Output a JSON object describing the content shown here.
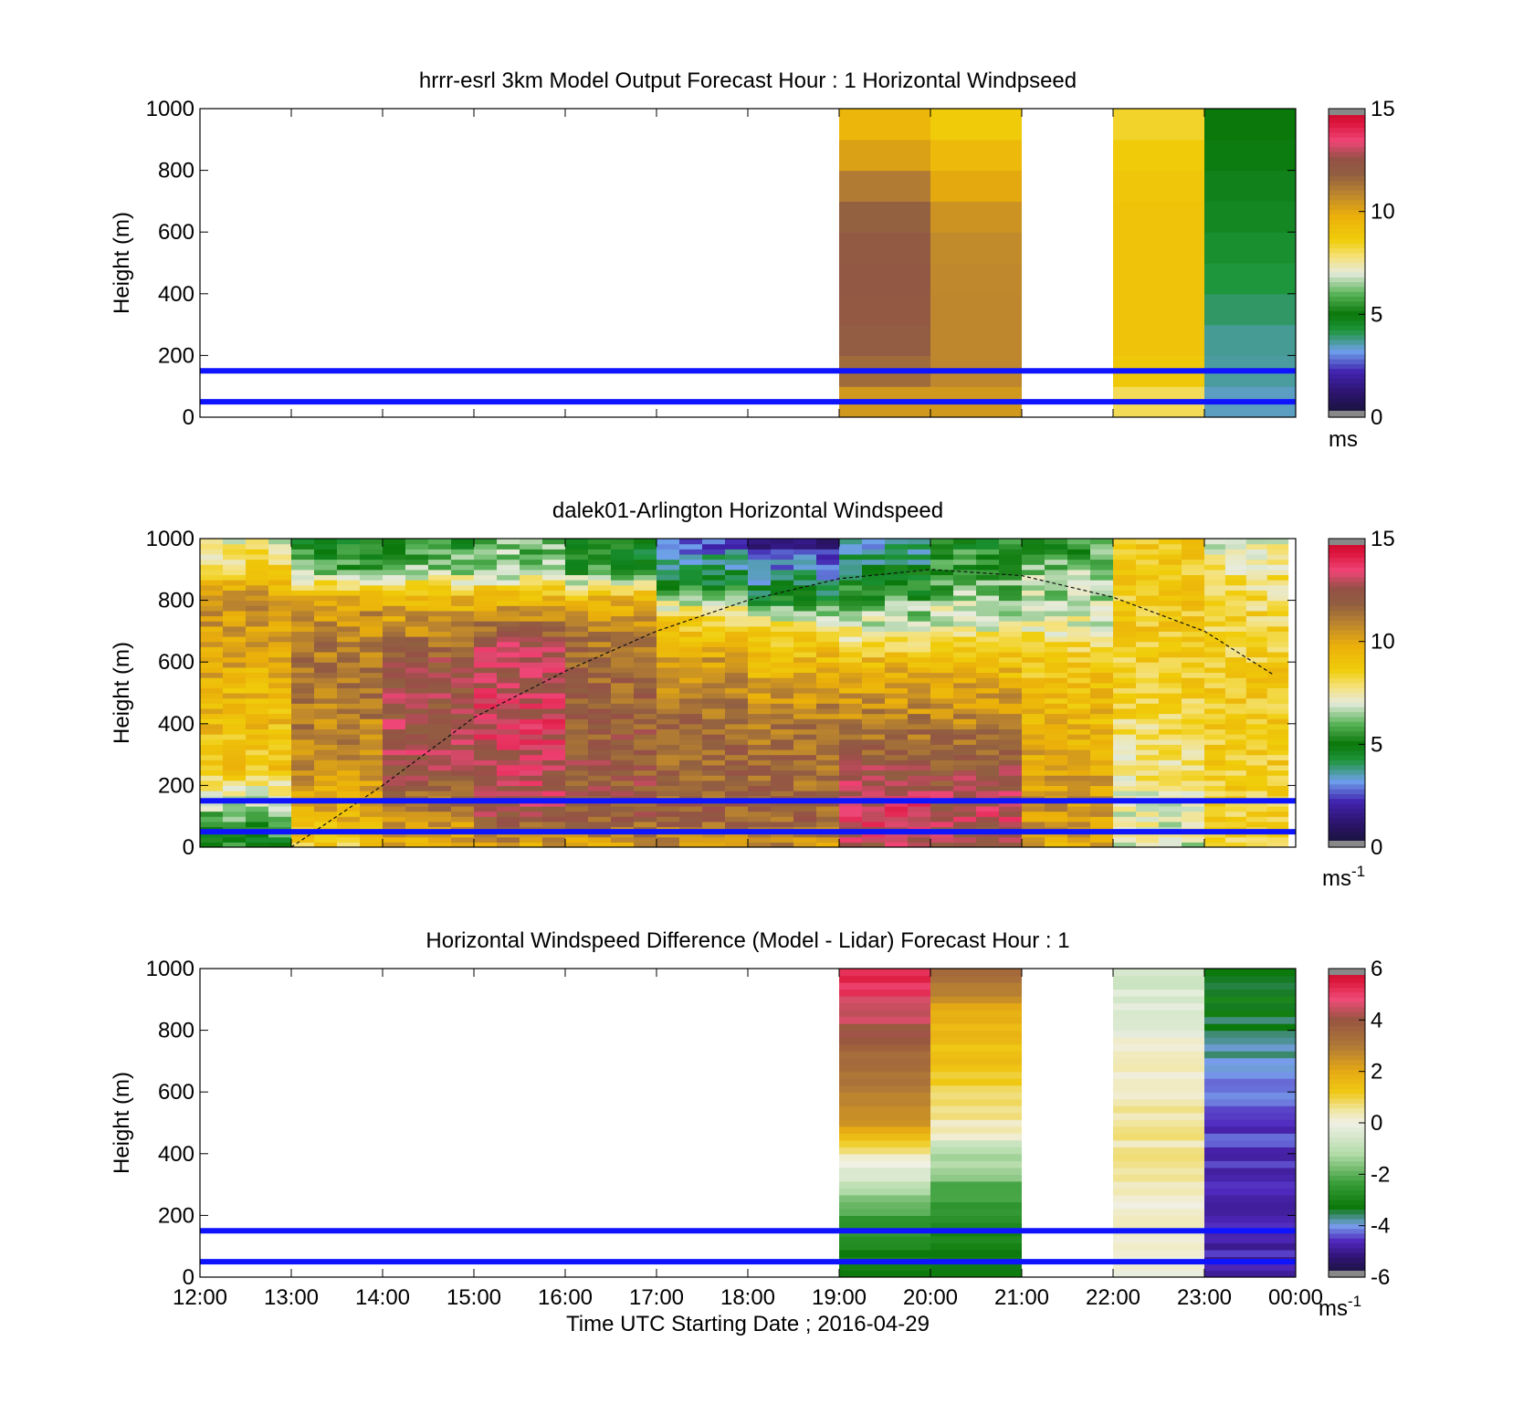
{
  "chart_data": [
    {
      "type": "heatmap",
      "title": "hrrr-esrl 3km Model Output   Forecast Hour : 1 Horizontal Windpseed",
      "ylabel": "Height (m)",
      "xlim": [
        "12:00",
        "00:00"
      ],
      "ylim": [
        0,
        1000
      ],
      "yticks": [
        "0",
        "200",
        "400",
        "600",
        "800",
        "1000"
      ],
      "x_ticks": [
        "12:00",
        "13:00",
        "14:00",
        "15:00",
        "16:00",
        "17:00",
        "18:00",
        "19:00",
        "20:00",
        "21:00",
        "22:00",
        "23:00",
        "00:00"
      ],
      "colorbar": {
        "min": 0,
        "max": 15,
        "ticks": [
          "0",
          "5",
          "10",
          "15"
        ],
        "unit": "ms"
      },
      "reference_heights_m": [
        50,
        150
      ],
      "columns": [
        {
          "start": "19:00",
          "end": "20:00",
          "profile": [
            [
              0,
              9.5
            ],
            [
              20,
              9.6
            ],
            [
              40,
              10.2
            ],
            [
              100,
              11.3
            ],
            [
              300,
              12.1
            ],
            [
              500,
              12.2
            ],
            [
              700,
              11.6
            ],
            [
              800,
              10.6
            ],
            [
              900,
              9.7
            ],
            [
              1000,
              9.3
            ]
          ]
        },
        {
          "start": "20:00",
          "end": "21:00",
          "profile": [
            [
              0,
              9.0
            ],
            [
              20,
              9.5
            ],
            [
              40,
              10.3
            ],
            [
              100,
              10.8
            ],
            [
              400,
              10.8
            ],
            [
              600,
              10.7
            ],
            [
              700,
              10.3
            ],
            [
              800,
              9.6
            ],
            [
              900,
              9.2
            ],
            [
              1000,
              8.2
            ]
          ]
        },
        {
          "start": "22:00",
          "end": "23:00",
          "profile": [
            [
              0,
              6.0
            ],
            [
              15,
              6.9
            ],
            [
              35,
              7.5
            ],
            [
              60,
              8.4
            ],
            [
              200,
              9.0
            ],
            [
              700,
              9.0
            ],
            [
              850,
              8.7
            ],
            [
              1000,
              8.2
            ]
          ]
        },
        {
          "start": "23:00",
          "end": "00:00",
          "profile": [
            [
              0,
              3.2
            ],
            [
              40,
              3.4
            ],
            [
              100,
              3.6
            ],
            [
              250,
              3.7
            ],
            [
              400,
              4.1
            ],
            [
              500,
              4.3
            ],
            [
              650,
              4.6
            ],
            [
              800,
              4.8
            ],
            [
              900,
              5.0
            ],
            [
              1000,
              5.0
            ]
          ]
        }
      ]
    },
    {
      "type": "heatmap",
      "title": "dalek01-Arlington  Horizontal Windspeed",
      "ylabel": "Height (m)",
      "xlim": [
        "12:00",
        "00:00"
      ],
      "ylim": [
        0,
        1000
      ],
      "yticks": [
        "0",
        "200",
        "400",
        "600",
        "800",
        "1000"
      ],
      "colorbar": {
        "min": 0,
        "max": 15,
        "ticks": [
          "0",
          "5",
          "10",
          "15"
        ],
        "unit": "ms",
        "unit_exponent": "-1"
      },
      "reference_heights_m": [
        50,
        150
      ],
      "boundary_layer_curve": [
        [
          "13:00",
          0
        ],
        [
          "14:00",
          200
        ],
        [
          "15:00",
          420
        ],
        [
          "16:00",
          570
        ],
        [
          "17:00",
          700
        ],
        [
          "18:00",
          800
        ],
        [
          "19:00",
          870
        ],
        [
          "20:00",
          900
        ],
        [
          "21:00",
          880
        ],
        [
          "22:00",
          810
        ],
        [
          "23:00",
          700
        ],
        [
          "23:45",
          560
        ]
      ],
      "bins": [
        {
          "start": "12:00",
          "end": "13:00",
          "profile": [
            [
              0,
              5.0
            ],
            [
              60,
              5.5
            ],
            [
              150,
              6.8
            ],
            [
              250,
              8.8
            ],
            [
              500,
              9.5
            ],
            [
              800,
              10.6
            ],
            [
              900,
              8.5
            ],
            [
              1000,
              7.2
            ]
          ]
        },
        {
          "start": "13:00",
          "end": "14:00",
          "profile": [
            [
              0,
              8.5
            ],
            [
              100,
              9.6
            ],
            [
              300,
              10.8
            ],
            [
              600,
              11.3
            ],
            [
              800,
              10.3
            ],
            [
              900,
              6.0
            ],
            [
              1000,
              5.0
            ]
          ]
        },
        {
          "start": "14:00",
          "end": "15:00",
          "profile": [
            [
              0,
              9.6
            ],
            [
              100,
              11.0
            ],
            [
              300,
              12.8
            ],
            [
              600,
              12.2
            ],
            [
              800,
              9.6
            ],
            [
              900,
              6.5
            ],
            [
              1000,
              5.0
            ]
          ]
        },
        {
          "start": "15:00",
          "end": "16:00",
          "profile": [
            [
              0,
              10.0
            ],
            [
              100,
              12.6
            ],
            [
              400,
              13.2
            ],
            [
              650,
              12.8
            ],
            [
              800,
              9.6
            ],
            [
              900,
              6.5
            ],
            [
              1000,
              6.0
            ]
          ]
        },
        {
          "start": "16:00",
          "end": "17:00",
          "profile": [
            [
              0,
              10.0
            ],
            [
              100,
              12.2
            ],
            [
              400,
              12.0
            ],
            [
              700,
              11.2
            ],
            [
              800,
              9.6
            ],
            [
              900,
              5.5
            ],
            [
              1000,
              4.5
            ]
          ]
        },
        {
          "start": "17:00",
          "end": "18:00",
          "profile": [
            [
              0,
              10.5
            ],
            [
              100,
              11.8
            ],
            [
              400,
              11.5
            ],
            [
              600,
              10.3
            ],
            [
              750,
              8.2
            ],
            [
              850,
              5.0
            ],
            [
              1000,
              2.5
            ]
          ]
        },
        {
          "start": "18:00",
          "end": "19:00",
          "profile": [
            [
              0,
              10.5
            ],
            [
              100,
              11.8
            ],
            [
              400,
              11.2
            ],
            [
              600,
              9.4
            ],
            [
              700,
              8.6
            ],
            [
              800,
              5.0
            ],
            [
              1000,
              1.5
            ]
          ]
        },
        {
          "start": "19:00",
          "end": "20:00",
          "profile": [
            [
              0,
              12.5
            ],
            [
              100,
              13.4
            ],
            [
              200,
              13.0
            ],
            [
              350,
              11.5
            ],
            [
              600,
              9.4
            ],
            [
              700,
              7.5
            ],
            [
              850,
              5.0
            ],
            [
              1000,
              3.5
            ]
          ]
        },
        {
          "start": "20:00",
          "end": "21:00",
          "profile": [
            [
              0,
              12.0
            ],
            [
              100,
              13.0
            ],
            [
              250,
              12.2
            ],
            [
              450,
              10.6
            ],
            [
              600,
              9.2
            ],
            [
              700,
              7.4
            ],
            [
              850,
              6.0
            ],
            [
              1000,
              5.0
            ]
          ]
        },
        {
          "start": "21:00",
          "end": "22:00",
          "profile": [
            [
              0,
              10.0
            ],
            [
              150,
              10.5
            ],
            [
              400,
              9.5
            ],
            [
              600,
              8.8
            ],
            [
              750,
              7.0
            ],
            [
              900,
              6.2
            ],
            [
              1000,
              5.5
            ]
          ]
        },
        {
          "start": "22:00",
          "end": "23:00",
          "profile": [
            [
              0,
              7.0
            ],
            [
              200,
              7.5
            ],
            [
              500,
              8.5
            ],
            [
              800,
              8.8
            ],
            [
              1000,
              8.5
            ]
          ]
        },
        {
          "start": "23:00",
          "end": "23:55",
          "profile": [
            [
              0,
              8.0
            ],
            [
              200,
              8.6
            ],
            [
              500,
              8.8
            ],
            [
              800,
              8.2
            ],
            [
              1000,
              7.0
            ]
          ]
        }
      ]
    },
    {
      "type": "heatmap",
      "title": "Horizontal Windspeed Difference (Model - Lidar) Forecast Hour : 1",
      "ylabel": "Height (m)",
      "xlabel": "Time UTC  Starting Date ; 2016-04-29",
      "xlim": [
        "12:00",
        "00:00"
      ],
      "ylim": [
        0,
        1000
      ],
      "yticks": [
        "0",
        "200",
        "400",
        "600",
        "800",
        "1000"
      ],
      "x_ticks": [
        "12:00",
        "13:00",
        "14:00",
        "15:00",
        "16:00",
        "17:00",
        "18:00",
        "19:00",
        "20:00",
        "21:00",
        "22:00",
        "23:00",
        "00:00"
      ],
      "colorbar": {
        "min": -6,
        "max": 6,
        "ticks": [
          "-6",
          "-4",
          "-2",
          "0",
          "2",
          "4",
          "6"
        ],
        "unit": "ms",
        "unit_exponent": "-1"
      },
      "reference_heights_m": [
        50,
        150
      ],
      "columns": [
        {
          "start": "19:00",
          "end": "20:00",
          "profile": [
            [
              0,
              -3.4
            ],
            [
              100,
              -3.0
            ],
            [
              250,
              -2.0
            ],
            [
              330,
              -0.6
            ],
            [
              400,
              0.6
            ],
            [
              500,
              2.2
            ],
            [
              600,
              3.0
            ],
            [
              750,
              3.5
            ],
            [
              850,
              4.5
            ],
            [
              950,
              5.2
            ],
            [
              1000,
              5.4
            ]
          ]
        },
        {
          "start": "20:00",
          "end": "21:00",
          "profile": [
            [
              0,
              -3.4
            ],
            [
              100,
              -3.0
            ],
            [
              250,
              -2.4
            ],
            [
              400,
              -1.0
            ],
            [
              480,
              0.3
            ],
            [
              600,
              1.0
            ],
            [
              800,
              1.6
            ],
            [
              900,
              2.4
            ],
            [
              1000,
              3.5
            ]
          ]
        },
        {
          "start": "22:00",
          "end": "23:00",
          "profile": [
            [
              0,
              -0.2
            ],
            [
              200,
              0.3
            ],
            [
              500,
              0.5
            ],
            [
              700,
              0.2
            ],
            [
              850,
              -0.3
            ],
            [
              1000,
              -0.6
            ]
          ]
        },
        {
          "start": "23:00",
          "end": "00:00",
          "profile": [
            [
              0,
              -4.8
            ],
            [
              300,
              -4.7
            ],
            [
              500,
              -4.5
            ],
            [
              650,
              -4.0
            ],
            [
              800,
              -3.6
            ],
            [
              900,
              -3.0
            ],
            [
              1000,
              -3.5
            ]
          ]
        }
      ]
    }
  ]
}
